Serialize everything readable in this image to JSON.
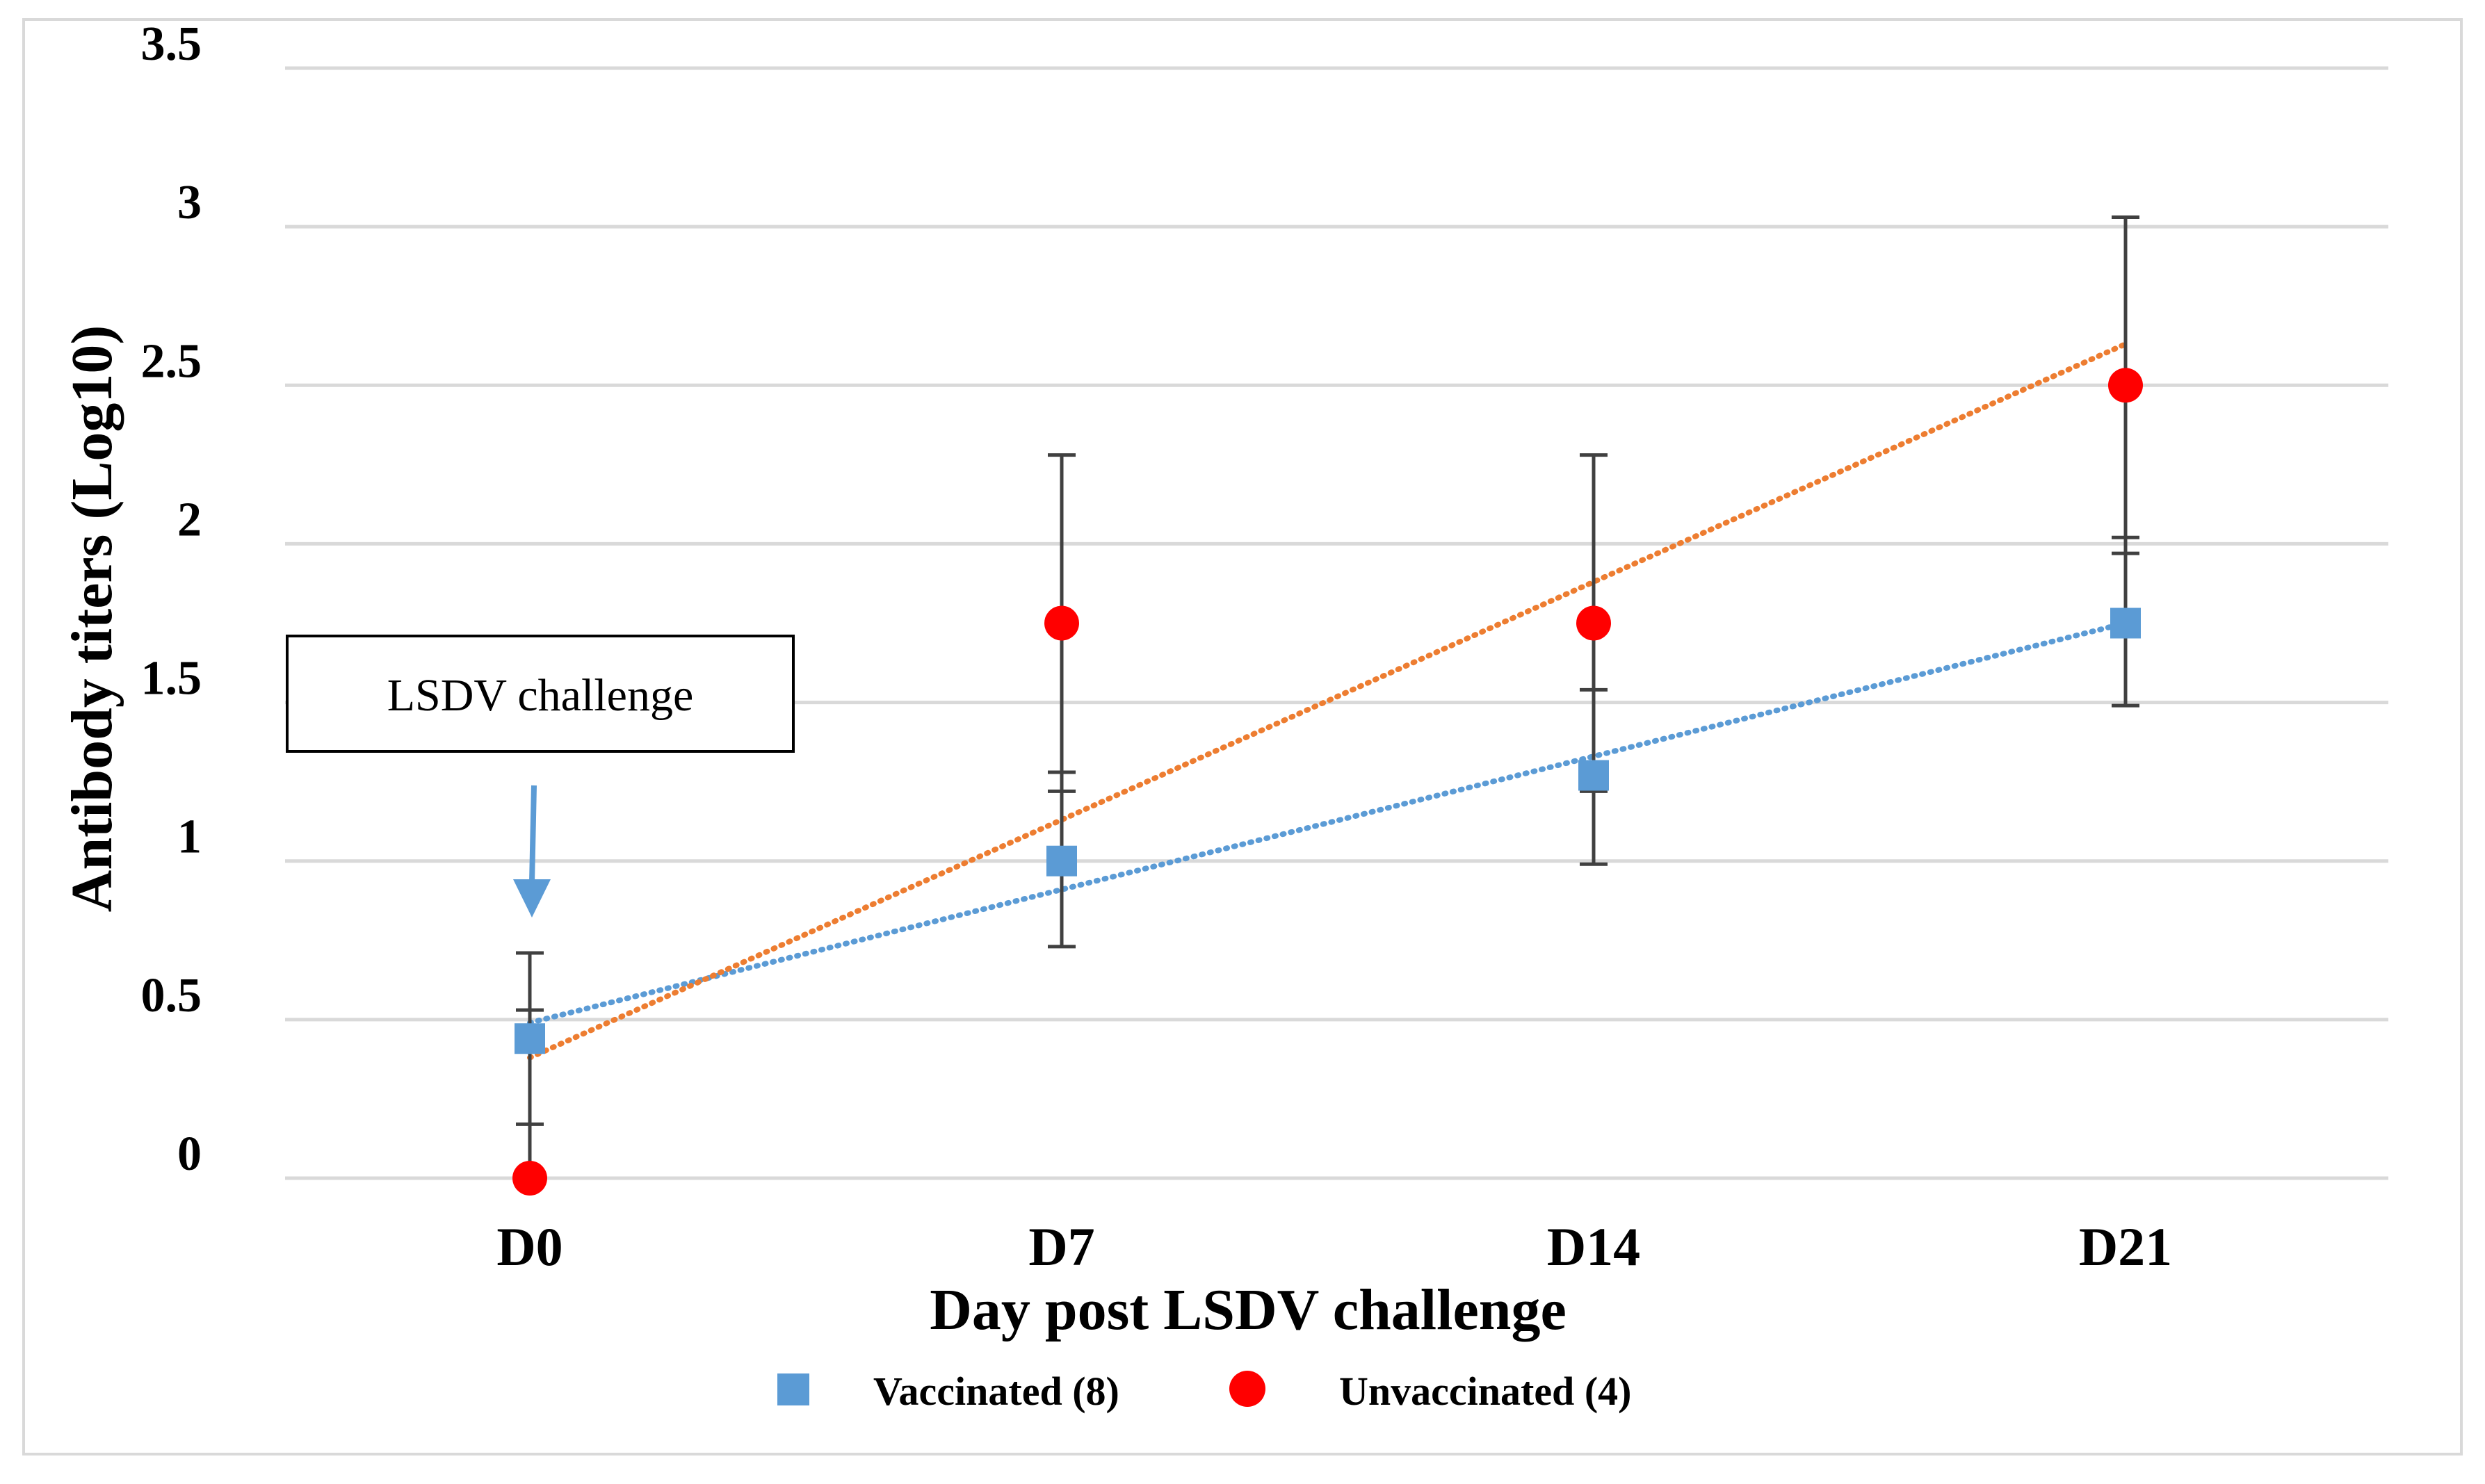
{
  "chart_data": {
    "type": "scatter",
    "xlabel": "Day post LSDV challenge",
    "ylabel": "Antibody titers (Log10)",
    "categories": [
      "D0",
      "D7",
      "D14",
      "D21"
    ],
    "ylim": [
      0,
      3.5
    ],
    "yticks": [
      0,
      0.5,
      1,
      1.5,
      2,
      2.5,
      3,
      3.5
    ],
    "ytick_labels": [
      "0",
      "0.5",
      "1",
      "1.5",
      "2",
      "2.5",
      "3",
      "3.5"
    ],
    "grid": true,
    "legend_position": "bottom",
    "series": [
      {
        "name": "Vaccinated (8)",
        "marker": "square",
        "color": "#5B9BD5",
        "trendline_color": "#5B9BD5",
        "values": [
          0.44,
          1.0,
          1.27,
          1.75
        ],
        "error_low": [
          0.17,
          0.73,
          0.99,
          1.49
        ],
        "error_high": [
          0.71,
          1.28,
          1.54,
          2.02
        ],
        "trendline": [
          0.49,
          0.91,
          1.33,
          1.75
        ]
      },
      {
        "name": "Unvaccinated (4)",
        "marker": "circle",
        "color": "#FF0000",
        "trendline_color": "#ED7D31",
        "values": [
          0.0,
          1.75,
          1.75,
          2.5
        ],
        "error_low": [
          0.0,
          1.22,
          1.22,
          1.97
        ],
        "error_high": [
          0.53,
          2.28,
          2.28,
          3.03
        ],
        "trendline": [
          0.38,
          1.13,
          1.88,
          2.63
        ]
      }
    ],
    "annotation": {
      "text": "LSDV challenge",
      "category": "D0",
      "arrow_color": "#5B9BD5"
    }
  }
}
